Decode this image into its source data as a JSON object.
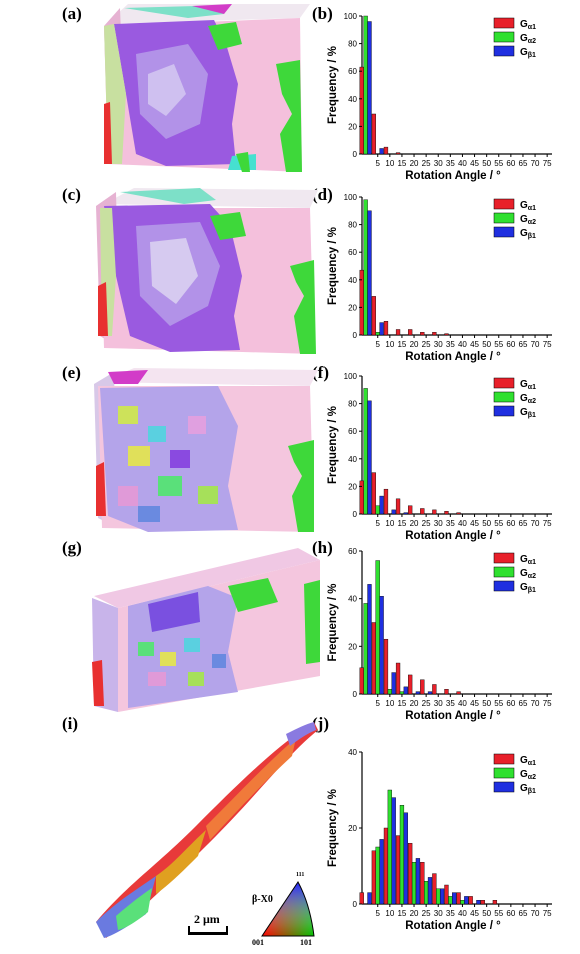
{
  "panels": {
    "labels": [
      "(a)",
      "(b)",
      "(c)",
      "(d)",
      "(e)",
      "(f)",
      "(g)",
      "(h)",
      "(i)",
      "(j)"
    ]
  },
  "scale_bar": {
    "label": "2 μm"
  },
  "ipf_key": {
    "title": "β-X0",
    "corner_left": "001",
    "corner_right": "101",
    "corner_top": "111"
  },
  "colors": {
    "G_a1": "#e8202a",
    "G_a2": "#2fe02f",
    "G_b1": "#1f2fe0",
    "purple": "#9a5ae0",
    "pink": "#f4c0dc",
    "green": "#3ed83a",
    "red": "#e83030"
  },
  "chart_data": [
    {
      "type": "bar",
      "ylabel": "Frequency / %",
      "xlabel": "Rotation Angle / °",
      "x": [
        0,
        5,
        10,
        15,
        20,
        25,
        30,
        35,
        40,
        45,
        50,
        55,
        60,
        65,
        70,
        75
      ],
      "xticks": [
        "5",
        "10",
        "15",
        "20",
        "25",
        "30",
        "35",
        "40",
        "45",
        "50",
        "55",
        "60",
        "65",
        "70",
        "75"
      ],
      "ylim": [
        0,
        100
      ],
      "yticks": [
        "0",
        "20",
        "40",
        "60",
        "80",
        "100"
      ],
      "series": [
        {
          "name": "Gα1",
          "color": "#e8202a",
          "values": [
            63,
            29,
            5,
            1,
            0,
            0,
            0,
            0,
            0,
            0,
            0,
            0,
            0,
            0,
            0,
            0
          ]
        },
        {
          "name": "Gα2",
          "color": "#2fe02f",
          "values": [
            100,
            0,
            0,
            0,
            0,
            0,
            0,
            0,
            0,
            0,
            0,
            0,
            0,
            0,
            0,
            0
          ]
        },
        {
          "name": "Gβ1",
          "color": "#1f2fe0",
          "values": [
            96,
            4,
            0,
            0,
            0,
            0,
            0,
            0,
            0,
            0,
            0,
            0,
            0,
            0,
            0,
            0
          ]
        }
      ]
    },
    {
      "type": "bar",
      "ylabel": "Frequency / %",
      "xlabel": "Rotation Angle / °",
      "x": [
        0,
        5,
        10,
        15,
        20,
        25,
        30,
        35,
        40,
        45,
        50,
        55,
        60,
        65,
        70,
        75
      ],
      "xticks": [
        "5",
        "10",
        "15",
        "20",
        "25",
        "30",
        "35",
        "40",
        "45",
        "50",
        "55",
        "60",
        "65",
        "70",
        "75"
      ],
      "ylim": [
        0,
        100
      ],
      "yticks": [
        "0",
        "20",
        "40",
        "60",
        "80",
        "100"
      ],
      "series": [
        {
          "name": "Gα1",
          "color": "#e8202a",
          "values": [
            47,
            28,
            10,
            4,
            4,
            2,
            2,
            1,
            0,
            0,
            0,
            0,
            0,
            0,
            0,
            0
          ]
        },
        {
          "name": "Gα2",
          "color": "#2fe02f",
          "values": [
            98,
            2,
            0,
            0,
            0,
            0,
            0,
            0,
            0,
            0,
            0,
            0,
            0,
            0,
            0,
            0
          ]
        },
        {
          "name": "Gβ1",
          "color": "#1f2fe0",
          "values": [
            90,
            9,
            0,
            0,
            0,
            0,
            0,
            0,
            0,
            0,
            0,
            0,
            0,
            0,
            0,
            0
          ]
        }
      ]
    },
    {
      "type": "bar",
      "ylabel": "Frequency / %",
      "xlabel": "Rotation Angle / °",
      "x": [
        0,
        5,
        10,
        15,
        20,
        25,
        30,
        35,
        40,
        45,
        50,
        55,
        60,
        65,
        70,
        75
      ],
      "xticks": [
        "5",
        "10",
        "15",
        "20",
        "25",
        "30",
        "35",
        "40",
        "45",
        "50",
        "55",
        "60",
        "65",
        "70",
        "75"
      ],
      "ylim": [
        0,
        100
      ],
      "yticks": [
        "0",
        "20",
        "40",
        "60",
        "80",
        "100"
      ],
      "series": [
        {
          "name": "Gα1",
          "color": "#e8202a",
          "values": [
            24,
            30,
            18,
            11,
            6,
            4,
            3,
            2,
            1,
            0,
            0,
            0,
            0,
            0,
            0,
            0
          ]
        },
        {
          "name": "Gα2",
          "color": "#2fe02f",
          "values": [
            91,
            6,
            0,
            0,
            0,
            0,
            0,
            0,
            0,
            0,
            0,
            0,
            0,
            0,
            0,
            0
          ]
        },
        {
          "name": "Gβ1",
          "color": "#1f2fe0",
          "values": [
            82,
            13,
            3,
            1,
            0,
            0,
            0,
            0,
            0,
            0,
            0,
            0,
            0,
            0,
            0,
            0
          ]
        }
      ]
    },
    {
      "type": "bar",
      "ylabel": "Frequency / %",
      "xlabel": "Rotation Angle / °",
      "x": [
        0,
        5,
        10,
        15,
        20,
        25,
        30,
        35,
        40,
        45,
        50,
        55,
        60,
        65,
        70,
        75
      ],
      "xticks": [
        "5",
        "10",
        "15",
        "20",
        "25",
        "30",
        "35",
        "40",
        "45",
        "50",
        "55",
        "60",
        "65",
        "70",
        "75"
      ],
      "ylim": [
        0,
        60
      ],
      "yticks": [
        "0",
        "20",
        "40",
        "60"
      ],
      "series": [
        {
          "name": "Gα1",
          "color": "#e8202a",
          "values": [
            11,
            30,
            23,
            13,
            8,
            6,
            4,
            2,
            1,
            0,
            0,
            0,
            0,
            0,
            0,
            0
          ]
        },
        {
          "name": "Gα2",
          "color": "#2fe02f",
          "values": [
            38,
            56,
            2,
            1,
            0,
            0,
            0,
            0,
            0,
            0,
            0,
            0,
            0,
            0,
            0,
            0
          ]
        },
        {
          "name": "Gβ1",
          "color": "#1f2fe0",
          "values": [
            46,
            41,
            9,
            3,
            1,
            1,
            0,
            0,
            0,
            0,
            0,
            0,
            0,
            0,
            0,
            0
          ]
        }
      ]
    },
    {
      "type": "bar",
      "ylabel": "Frequency / %",
      "xlabel": "Rotation Angle / °",
      "x": [
        0,
        5,
        10,
        15,
        20,
        25,
        30,
        35,
        40,
        45,
        50,
        55,
        60,
        65,
        70,
        75
      ],
      "xticks": [
        "5",
        "10",
        "15",
        "20",
        "25",
        "30",
        "35",
        "40",
        "45",
        "50",
        "55",
        "60",
        "65",
        "70",
        "75"
      ],
      "ylim": [
        0,
        40
      ],
      "yticks": [
        "0",
        "20",
        "40"
      ],
      "series": [
        {
          "name": "Gα1",
          "color": "#e8202a",
          "values": [
            3,
            14,
            20,
            18,
            16,
            11,
            8,
            5,
            3,
            2,
            1,
            1,
            0,
            0,
            0,
            0
          ]
        },
        {
          "name": "Gα2",
          "color": "#2fe02f",
          "values": [
            0,
            15,
            30,
            26,
            11,
            6,
            4,
            2,
            1,
            0,
            0,
            0,
            0,
            0,
            0,
            0
          ]
        },
        {
          "name": "Gβ1",
          "color": "#1f2fe0",
          "values": [
            3,
            17,
            28,
            24,
            12,
            7,
            4,
            3,
            2,
            1,
            0,
            0,
            0,
            0,
            0,
            0
          ]
        }
      ]
    }
  ]
}
